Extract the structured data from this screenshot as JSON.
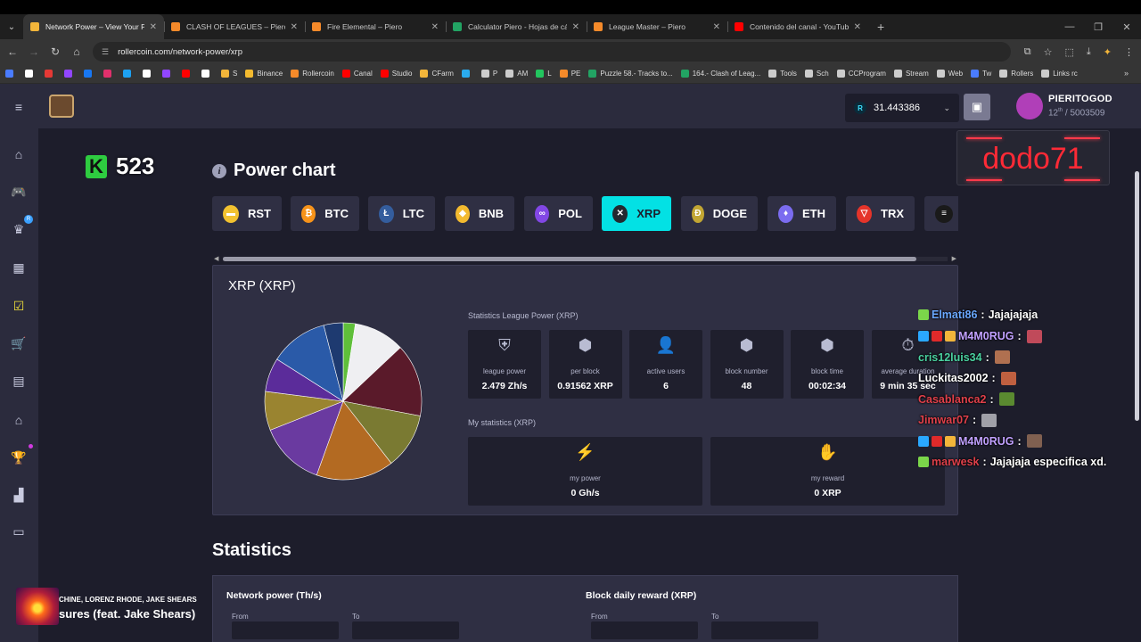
{
  "browser": {
    "tabs": [
      {
        "title": "Network Power – View Your Po",
        "color": "#f2b53a",
        "active": true
      },
      {
        "title": "CLASH OF LEAGUES – Piero",
        "color": "#f58a2a",
        "active": false
      },
      {
        "title": "Fire Elemental – Piero",
        "color": "#f58a2a",
        "active": false
      },
      {
        "title": "Calculator Piero - Hojas de cálc",
        "color": "#22a363",
        "active": false
      },
      {
        "title": "League Master – Piero",
        "color": "#f58a2a",
        "active": false
      },
      {
        "title": "Contenido del canal - YouTube",
        "color": "#ff0000",
        "active": false
      }
    ],
    "new_tab": "+",
    "url": "rollercoin.com/network-power/xrp",
    "bookmarks": [
      {
        "label": "",
        "color": "#4a7cff"
      },
      {
        "label": "",
        "color": "#ffffff"
      },
      {
        "label": "",
        "color": "#e53935"
      },
      {
        "label": "",
        "color": "#9146ff"
      },
      {
        "label": "",
        "color": "#1877f2"
      },
      {
        "label": "",
        "color": "#e1306c"
      },
      {
        "label": "",
        "color": "#1da1f2"
      },
      {
        "label": "",
        "color": "#ffffff"
      },
      {
        "label": "",
        "color": "#9146ff"
      },
      {
        "label": "",
        "color": "#ff0000"
      },
      {
        "label": "",
        "color": "#ffffff"
      },
      {
        "label": "S",
        "color": "#f2b53a"
      },
      {
        "label": "Binance",
        "color": "#f3ba2f"
      },
      {
        "label": "Rollercoin",
        "color": "#f58a2a"
      },
      {
        "label": "Canal",
        "color": "#ff0000"
      },
      {
        "label": "Studio",
        "color": "#ff0000"
      },
      {
        "label": "CFarm",
        "color": "#f2b53a"
      },
      {
        "label": "",
        "color": "#2aabee"
      },
      {
        "label": "P",
        "color": "#cccccc"
      },
      {
        "label": "AM",
        "color": "#cccccc"
      },
      {
        "label": "L",
        "color": "#22c55e"
      },
      {
        "label": "PE",
        "color": "#f58a2a"
      },
      {
        "label": "Puzzle 58.- Tracks to...",
        "color": "#22a363"
      },
      {
        "label": "164.- Clash of Leag...",
        "color": "#22a363"
      },
      {
        "label": "Tools",
        "color": "#cccccc"
      },
      {
        "label": "Sch",
        "color": "#cccccc"
      },
      {
        "label": "CCProgram",
        "color": "#cccccc"
      },
      {
        "label": "Stream",
        "color": "#cccccc"
      },
      {
        "label": "Web",
        "color": "#cccccc"
      },
      {
        "label": "Tw",
        "color": "#4a7cff"
      },
      {
        "label": "Rollers",
        "color": "#cccccc"
      },
      {
        "label": "Links rc",
        "color": "#cccccc"
      }
    ],
    "bookmarks_more": "»"
  },
  "header": {
    "balance": "31.443386",
    "balance_symbol": "R",
    "username": "PIERITOGOD",
    "rank_num": "12",
    "rank_sup": "th",
    "rank_total": "/ 5003509"
  },
  "overlay": {
    "dodo": "dodo71",
    "k_count": "523",
    "k_letter": "K"
  },
  "power_chart": {
    "title": "Power chart",
    "info_glyph": "i",
    "coins": [
      {
        "label": "RST",
        "color": "#f2c230",
        "glyph": "▬",
        "active": false
      },
      {
        "label": "BTC",
        "color": "#f7931a",
        "glyph": "₿",
        "active": false
      },
      {
        "label": "LTC",
        "color": "#345d9d",
        "glyph": "Ł",
        "active": false
      },
      {
        "label": "BNB",
        "color": "#f3ba2f",
        "glyph": "◆",
        "active": false
      },
      {
        "label": "POL",
        "color": "#8247e5",
        "glyph": "∞",
        "active": false
      },
      {
        "label": "XRP",
        "color": "#23292f",
        "glyph": "✕",
        "active": true
      },
      {
        "label": "DOGE",
        "color": "#c2a633",
        "glyph": "Ð",
        "active": false
      },
      {
        "label": "ETH",
        "color": "#7b6cf0",
        "glyph": "♦",
        "active": false
      },
      {
        "label": "TRX",
        "color": "#e5342a",
        "glyph": "▽",
        "active": false
      },
      {
        "label": "",
        "color": "#1a1a1a",
        "glyph": "≡",
        "active": false
      }
    ]
  },
  "panel": {
    "title": "XRP (XRP)",
    "stats_label": "Statistics League Power (XRP)",
    "stats": [
      {
        "label": "league power",
        "value": "2.479 Zh/s",
        "icon": "shield-icon",
        "glyph": "⛨"
      },
      {
        "label": "per block",
        "value": "0.91562 XRP",
        "icon": "cube-icon",
        "glyph": "⬢"
      },
      {
        "label": "active users",
        "value": "6",
        "icon": "user-icon",
        "glyph": "👤"
      },
      {
        "label": "block number",
        "value": "48",
        "icon": "blocks-icon",
        "glyph": "⬢"
      },
      {
        "label": "block time",
        "value": "00:02:34",
        "icon": "block-clock-icon",
        "glyph": "⬢"
      },
      {
        "label": "average duration",
        "value": "9 min 35 sec",
        "icon": "stopwatch-icon",
        "glyph": "⏱"
      }
    ],
    "my_label": "My statistics (XRP)",
    "my_stats": [
      {
        "label": "my power",
        "value": "0 Gh/s",
        "icon": "lightning-icon",
        "glyph": "⚡"
      },
      {
        "label": "my reward",
        "value": "0 XRP",
        "icon": "reward-hand-icon",
        "glyph": "✋"
      }
    ],
    "pie": {
      "slices": [
        {
          "value": 2.5,
          "color": "#5fbf3a"
        },
        {
          "value": 10.5,
          "color": "#efeff2"
        },
        {
          "value": 15,
          "color": "#5a1a2a"
        },
        {
          "value": 11.5,
          "color": "#7a7a32"
        },
        {
          "value": 16,
          "color": "#b36a22"
        },
        {
          "value": 13.5,
          "color": "#6a3aa0"
        },
        {
          "value": 8,
          "color": "#9a8430"
        },
        {
          "value": 7,
          "color": "#5b2c9a"
        },
        {
          "value": 12,
          "color": "#2a5aa8"
        },
        {
          "value": 4,
          "color": "#1e3a70"
        }
      ]
    }
  },
  "statistics": {
    "title": "Statistics",
    "network_power": "Network power (Th/s)",
    "block_reward": "Block daily reward (XRP)",
    "from": "From",
    "to": "To"
  },
  "chat": [
    {
      "user": "Elmati86",
      "color": "#6aa8ff",
      "text": "Jajajajaja",
      "badges": [
        "#7bd64a"
      ],
      "emote": ""
    },
    {
      "user": "M4M0RUG",
      "color": "#c0a0ff",
      "text": "",
      "badges": [
        "#2aa8ff",
        "#e02a2a",
        "#f2b53a"
      ],
      "emote": "#c04a5a"
    },
    {
      "user": "cris12luis34",
      "color": "#4ad1a0",
      "text": "",
      "badges": [],
      "emote": "#b07050"
    },
    {
      "user": "Luckitas2002",
      "color": "#ffffff",
      "text": "",
      "badges": [],
      "emote": "#c06040"
    },
    {
      "user": "Casablanca2",
      "color": "#e0404a",
      "text": "",
      "badges": [],
      "emote": "#5a8a30"
    },
    {
      "user": "Jimwar07",
      "color": "#e0404a",
      "text": "",
      "badges": [],
      "emote": "#a0a0a8"
    },
    {
      "user": "M4M0RUG",
      "color": "#c0a0ff",
      "text": "",
      "badges": [
        "#2aa8ff",
        "#e02a2a",
        "#f2b53a"
      ],
      "emote": "#806050"
    },
    {
      "user": "marwesk",
      "color": "#e0404a",
      "text": "Jajajaja especifica xd.",
      "badges": [
        "#7bd64a"
      ],
      "emote": ""
    }
  ],
  "music": {
    "artist": "CHINE, LORENZ RHODE, JAKE SHEARS",
    "song": "sures (feat. Jake Shears)"
  }
}
